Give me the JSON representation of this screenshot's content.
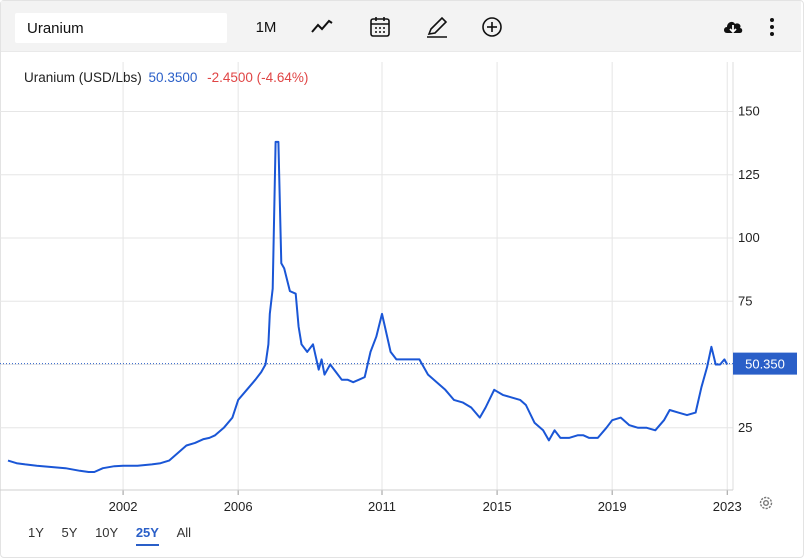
{
  "toolbar": {
    "search_value": "Uranium",
    "interval_label": "1M",
    "icons": [
      "line-chart-icon",
      "calendar-icon",
      "pencil-icon",
      "add-circle-icon",
      "cloud-download-icon",
      "more-vert-icon"
    ]
  },
  "quote": {
    "name": "Uranium (USD/Lbs)",
    "last": "50.3500",
    "change": "-2.4500 (-4.64%)",
    "last_color": "#2a5fc8",
    "change_color": "#e04545"
  },
  "ranges": {
    "items": [
      "1Y",
      "5Y",
      "10Y",
      "25Y",
      "All"
    ],
    "active": "25Y"
  },
  "chart_data": {
    "type": "line",
    "title": "Uranium (USD/Lbs)",
    "xlabel": "",
    "ylabel": "",
    "xlim": [
      1998.0,
      2023.2
    ],
    "ylim": [
      0,
      165
    ],
    "y_ticks": [
      25,
      50,
      75,
      100,
      125,
      150
    ],
    "x_ticks": [
      "2002",
      "2006",
      "2011",
      "2015",
      "2019",
      "2023"
    ],
    "y_axis_side": "right",
    "grid": true,
    "last_value_label": "50.350",
    "line_color": "#1a56d6",
    "series": [
      {
        "x": [
          1998.0,
          1998.3,
          1998.6,
          1999.0,
          1999.5,
          2000.0,
          2000.5,
          2000.8,
          2001.0,
          2001.3,
          2001.7,
          2002.0,
          2002.5,
          2003.0,
          2003.3,
          2003.6,
          2003.9,
          2004.2,
          2004.5,
          2004.8,
          2005.0,
          2005.2,
          2005.5,
          2005.8,
          2006.0,
          2006.3,
          2006.6,
          2006.8,
          2006.95,
          2007.05,
          2007.1,
          2007.2,
          2007.3,
          2007.4,
          2007.5,
          2007.6,
          2007.8,
          2008.0,
          2008.1,
          2008.2,
          2008.4,
          2008.6,
          2008.8,
          2008.9,
          2009.0,
          2009.2,
          2009.4,
          2009.6,
          2009.8,
          2010.0,
          2010.2,
          2010.4,
          2010.6,
          2010.8,
          2011.0,
          2011.1,
          2011.3,
          2011.5,
          2011.7,
          2012.0,
          2012.3,
          2012.6,
          2012.9,
          2013.2,
          2013.5,
          2013.8,
          2014.1,
          2014.4,
          2014.6,
          2014.9,
          2015.2,
          2015.5,
          2015.8,
          2016.0,
          2016.3,
          2016.6,
          2016.8,
          2017.0,
          2017.2,
          2017.5,
          2017.8,
          2018.0,
          2018.2,
          2018.5,
          2018.8,
          2019.0,
          2019.3,
          2019.6,
          2019.9,
          2020.2,
          2020.5,
          2020.8,
          2021.0,
          2021.3,
          2021.6,
          2021.9,
          2022.1,
          2022.3,
          2022.45,
          2022.6,
          2022.75,
          2022.9,
          2023.0
        ],
        "y": [
          12,
          11,
          10.5,
          10,
          9.5,
          9,
          8,
          7.5,
          7.5,
          9,
          9.8,
          10,
          10,
          10.5,
          11,
          12,
          15,
          18,
          19,
          20.5,
          21,
          22,
          25,
          29,
          36,
          40,
          44,
          47,
          50,
          58,
          70,
          80,
          138,
          138,
          90,
          88,
          79,
          78,
          65,
          58,
          55,
          58,
          48,
          52,
          46,
          50,
          47,
          44,
          44,
          43,
          44,
          45,
          55,
          61,
          70,
          65,
          55,
          52,
          52,
          52,
          52,
          46,
          43,
          40,
          36,
          35,
          33,
          29,
          33,
          40,
          38,
          37,
          36,
          34,
          27,
          24,
          20,
          24,
          21,
          21,
          22,
          22,
          21,
          21,
          25,
          28,
          29,
          26,
          25,
          25,
          24,
          28,
          32,
          31,
          30,
          31,
          41,
          49,
          57,
          50,
          50,
          52,
          50
        ]
      }
    ]
  }
}
